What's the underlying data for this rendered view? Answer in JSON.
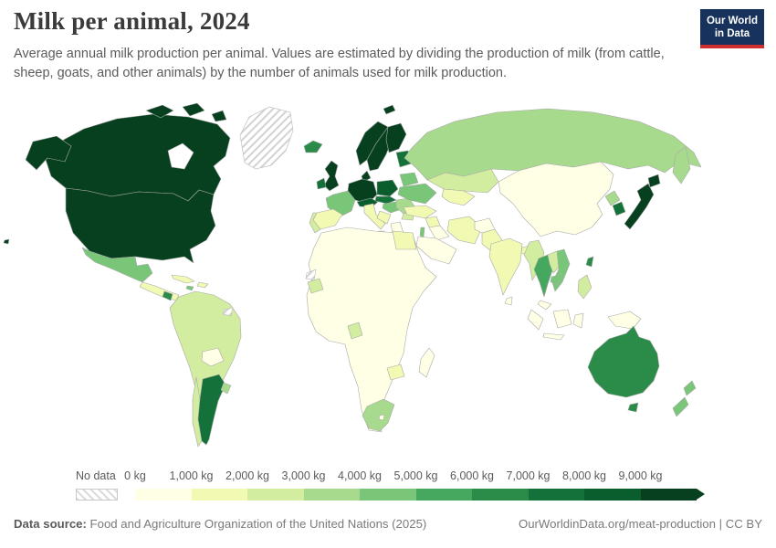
{
  "header": {
    "title": "Milk per animal, 2024",
    "subtitle": "Average annual milk production per animal. Values are estimated by dividing the production of milk (from cattle, sheep, goats, and other animals) by the number of animals used for milk production.",
    "logo": {
      "line1": "Our World",
      "line2": "in Data",
      "bg_color": "#17325c",
      "accent_color": "#cf2e2e"
    }
  },
  "legend": {
    "no_data_label": "No data",
    "bins": [
      {
        "label": "0 kg",
        "color": "#ffffe5"
      },
      {
        "label": "1,000 kg",
        "color": "#f1f9b2"
      },
      {
        "label": "2,000 kg",
        "color": "#d3eda0"
      },
      {
        "label": "3,000 kg",
        "color": "#a8da8e"
      },
      {
        "label": "4,000 kg",
        "color": "#79c679"
      },
      {
        "label": "5,000 kg",
        "color": "#45a85e"
      },
      {
        "label": "6,000 kg",
        "color": "#2b8c49"
      },
      {
        "label": "7,000 kg",
        "color": "#147139"
      },
      {
        "label": "8,000 kg",
        "color": "#0a5e2e"
      },
      {
        "label": "9,000 kg",
        "color": "#07401f"
      }
    ]
  },
  "footer": {
    "source_label": "Data source:",
    "source_text": " Food and Agriculture Organization of the United Nations (2025)",
    "link_text": "OurWorldinData.org/meat-production | CC BY"
  },
  "chart_data": {
    "type": "choropleth",
    "title": "Milk per animal, 2024",
    "subtitle": "Average annual milk production per animal. Values are estimated by dividing the production of milk (from cattle, sheep, goats, and other animals) by the number of animals used for milk production.",
    "unit": "kg per animal per year",
    "year": 2024,
    "legend_labels": [
      "No data",
      "0 kg",
      "1,000 kg",
      "2,000 kg",
      "3,000 kg",
      "4,000 kg",
      "5,000 kg",
      "6,000 kg",
      "7,000 kg",
      "8,000 kg",
      "9,000 kg"
    ],
    "regions": {
      "usa": {
        "label": "United States",
        "value_range": "9,000+ kg",
        "color": "#07401f"
      },
      "hawaii": {
        "label": "United States (Hawaii)",
        "value_range": "9,000+ kg",
        "color": "#07401f"
      },
      "canada": {
        "label": "Canada",
        "value_range": "9,000+ kg",
        "color": "#07401f"
      },
      "greenland": {
        "label": "Greenland",
        "value_range": "No data",
        "color": null
      },
      "mexico": {
        "label": "Mexico",
        "value_range": "4,000-5,000 kg",
        "color": "#79c679"
      },
      "central_america": {
        "label": "Central America",
        "value_range": "1,000-2,000 kg",
        "color": "#f1f9b2"
      },
      "costa_rica": {
        "label": "Costa Rica",
        "value_range": "6,000-7,000 kg",
        "color": "#2b8c49"
      },
      "cuba": {
        "label": "Cuba",
        "value_range": "1,000-2,000 kg",
        "color": "#f1f9b2"
      },
      "hispaniola": {
        "label": "Haiti / Dominican Republic",
        "value_range": "1,000-2,000 kg",
        "color": "#f1f9b2"
      },
      "jamaica": {
        "label": "Jamaica",
        "value_range": "4,000-5,000 kg",
        "color": "#79c679"
      },
      "brazil_region": {
        "label": "Brazil, Colombia, Peru & neighbors",
        "value_range": "2,000-3,000 kg",
        "color": "#d3eda0"
      },
      "bolivia": {
        "label": "Bolivia",
        "value_range": "0-1,000 kg",
        "color": "#ffffe5"
      },
      "argentina": {
        "label": "Argentina",
        "value_range": "7,000-8,000 kg",
        "color": "#147139"
      },
      "chile": {
        "label": "Chile",
        "value_range": "2,000-3,000 kg",
        "color": "#d3eda0"
      },
      "uruguay": {
        "label": "Uruguay",
        "value_range": "3,000-4,000 kg",
        "color": "#a8da8e"
      },
      "iceland": {
        "label": "Iceland",
        "value_range": "6,000-7,000 kg",
        "color": "#2b8c49"
      },
      "uk": {
        "label": "United Kingdom",
        "value_range": "9,000+ kg",
        "color": "#07401f"
      },
      "ireland": {
        "label": "Ireland",
        "value_range": "7,000-8,000 kg",
        "color": "#147139"
      },
      "norway": {
        "label": "Norway",
        "value_range": "9,000+ kg",
        "color": "#07401f"
      },
      "sweden": {
        "label": "Sweden",
        "value_range": "9,000+ kg",
        "color": "#07401f"
      },
      "finland": {
        "label": "Finland",
        "value_range": "9,000+ kg",
        "color": "#07401f"
      },
      "denmark": {
        "label": "Denmark",
        "value_range": "9,000+ kg",
        "color": "#07401f"
      },
      "baltics": {
        "label": "Baltic states",
        "value_range": "7,000-8,000 kg",
        "color": "#147139"
      },
      "germany": {
        "label": "Germany & Benelux",
        "value_range": "9,000+ kg",
        "color": "#07401f"
      },
      "france": {
        "label": "France",
        "value_range": "4,000-5,000 kg",
        "color": "#79c679"
      },
      "spain": {
        "label": "Spain",
        "value_range": "1,000-2,000 kg",
        "color": "#f1f9b2"
      },
      "portugal": {
        "label": "Portugal",
        "value_range": "2,000-3,000 kg",
        "color": "#d3eda0"
      },
      "italy": {
        "label": "Italy",
        "value_range": "1,000-2,000 kg",
        "color": "#f1f9b2"
      },
      "alpine": {
        "label": "Switzerland & Austria",
        "value_range": "8,000-9,000 kg",
        "color": "#0a5e2e"
      },
      "poland": {
        "label": "Poland",
        "value_range": "8,000-9,000 kg",
        "color": "#0a5e2e"
      },
      "czech_slovakia": {
        "label": "Czechia & Slovakia",
        "value_range": "7,000-8,000 kg",
        "color": "#147139"
      },
      "hungary": {
        "label": "Hungary",
        "value_range": "4,000-5,000 kg",
        "color": "#79c679"
      },
      "romania": {
        "label": "Romania",
        "value_range": "3,000-4,000 kg",
        "color": "#a8da8e"
      },
      "balkans": {
        "label": "Western Balkans",
        "value_range": "1,000-2,000 kg",
        "color": "#f1f9b2"
      },
      "bulgaria": {
        "label": "Bulgaria",
        "value_range": "2,000-3,000 kg",
        "color": "#d3eda0"
      },
      "greece": {
        "label": "Greece",
        "value_range": "0-1,000 kg",
        "color": "#ffffe5"
      },
      "ukraine": {
        "label": "Ukraine",
        "value_range": "4,000-5,000 kg",
        "color": "#79c679"
      },
      "belarus": {
        "label": "Belarus",
        "value_range": "4,000-5,000 kg",
        "color": "#79c679"
      },
      "russia": {
        "label": "Russia",
        "value_range": "3,000-4,000 kg",
        "color": "#a8da8e"
      },
      "kazakhstan": {
        "label": "Kazakhstan",
        "value_range": "2,000-3,000 kg",
        "color": "#d3eda0"
      },
      "central_asia": {
        "label": "Central Asia",
        "value_range": "1,000-2,000 kg",
        "color": "#f1f9b2"
      },
      "turkey": {
        "label": "Turkey",
        "value_range": "1,000-2,000 kg",
        "color": "#f1f9b2"
      },
      "syria": {
        "label": "Syria",
        "value_range": "1,000-2,000 kg",
        "color": "#f1f9b2"
      },
      "iraq": {
        "label": "Iraq",
        "value_range": "0-1,000 kg",
        "color": "#ffffe5"
      },
      "iran": {
        "label": "Iran",
        "value_range": "1,000-2,000 kg",
        "color": "#f1f9b2"
      },
      "israel": {
        "label": "Israel",
        "value_range": "4,000-5,000 kg",
        "color": "#79c679"
      },
      "arabia": {
        "label": "Saudi Arabia & Gulf",
        "value_range": "0-1,000 kg",
        "color": "#ffffe5"
      },
      "egypt": {
        "label": "Egypt",
        "value_range": "1,000-2,000 kg",
        "color": "#f1f9b2"
      },
      "afghanistan": {
        "label": "Afghanistan",
        "value_range": "0-1,000 kg",
        "color": "#ffffe5"
      },
      "pakistan": {
        "label": "Pakistan",
        "value_range": "1,000-2,000 kg",
        "color": "#f1f9b2"
      },
      "india": {
        "label": "India",
        "value_range": "1,000-2,000 kg",
        "color": "#f1f9b2"
      },
      "bangladesh": {
        "label": "Bangladesh",
        "value_range": "1,000-2,000 kg",
        "color": "#f1f9b2"
      },
      "myanmar": {
        "label": "Myanmar",
        "value_range": "2,000-3,000 kg",
        "color": "#d3eda0"
      },
      "sri_lanka": {
        "label": "Sri Lanka",
        "value_range": "0-1,000 kg",
        "color": "#ffffe5"
      },
      "china": {
        "label": "China & Mongolia",
        "value_range": "0-1,000 kg",
        "color": "#ffffe5"
      },
      "north_korea": {
        "label": "North Korea",
        "value_range": "3,000-4,000 kg",
        "color": "#a8da8e"
      },
      "south_korea": {
        "label": "South Korea",
        "value_range": "7,000-8,000 kg",
        "color": "#147139"
      },
      "japan": {
        "label": "Japan",
        "value_range": "9,000+ kg",
        "color": "#07401f"
      },
      "taiwan": {
        "label": "Taiwan",
        "value_range": "6,000-7,000 kg",
        "color": "#2b8c49"
      },
      "thailand": {
        "label": "Thailand",
        "value_range": "5,000-6,000 kg",
        "color": "#45a85e"
      },
      "laos": {
        "label": "Laos",
        "value_range": "2,000-3,000 kg",
        "color": "#d3eda0"
      },
      "vietnam": {
        "label": "Vietnam",
        "value_range": "4,000-5,000 kg",
        "color": "#79c679"
      },
      "cambodia": {
        "label": "Cambodia",
        "value_range": "4,000-5,000 kg",
        "color": "#79c679"
      },
      "malaysia": {
        "label": "Malaysia",
        "value_range": "0-1,000 kg",
        "color": "#ffffe5"
      },
      "indonesia": {
        "label": "Indonesia",
        "value_range": "0-1,000 kg",
        "color": "#ffffe5"
      },
      "philippines": {
        "label": "Philippines",
        "value_range": "2,000-3,000 kg",
        "color": "#d3eda0"
      },
      "new_guinea": {
        "label": "Papua New Guinea",
        "value_range": "0-1,000 kg",
        "color": "#ffffe5"
      },
      "australia": {
        "label": "Australia",
        "value_range": "6,000-7,000 kg",
        "color": "#2b8c49"
      },
      "new_zealand": {
        "label": "New Zealand",
        "value_range": "4,000-5,000 kg",
        "color": "#79c679"
      },
      "africa_other": {
        "label": "Most of Africa",
        "value_range": "0-1,000 kg",
        "color": "#ffffe5"
      },
      "south_africa": {
        "label": "South Africa",
        "value_range": "3,000-4,000 kg",
        "color": "#a8da8e"
      },
      "lesotho": {
        "label": "Lesotho",
        "value_range": "0-1,000 kg",
        "color": "#ffffe5"
      },
      "senegal_guinea": {
        "label": "Senegal & Guinea",
        "value_range": "2,000-3,000 kg",
        "color": "#d3eda0"
      },
      "gabon_congo": {
        "label": "Gabon & Congo coast",
        "value_range": "2,000-3,000 kg",
        "color": "#d3eda0"
      },
      "zambia": {
        "label": "Zambia",
        "value_range": "1,000-2,000 kg",
        "color": "#f1f9b2"
      },
      "madagascar": {
        "label": "Madagascar",
        "value_range": "0-1,000 kg",
        "color": "#ffffe5"
      },
      "western_sahara": {
        "label": "Western Sahara",
        "value_range": "No data",
        "color": null
      },
      "guianas": {
        "label": "Suriname / French Guiana",
        "value_range": "No data",
        "color": null
      }
    }
  }
}
